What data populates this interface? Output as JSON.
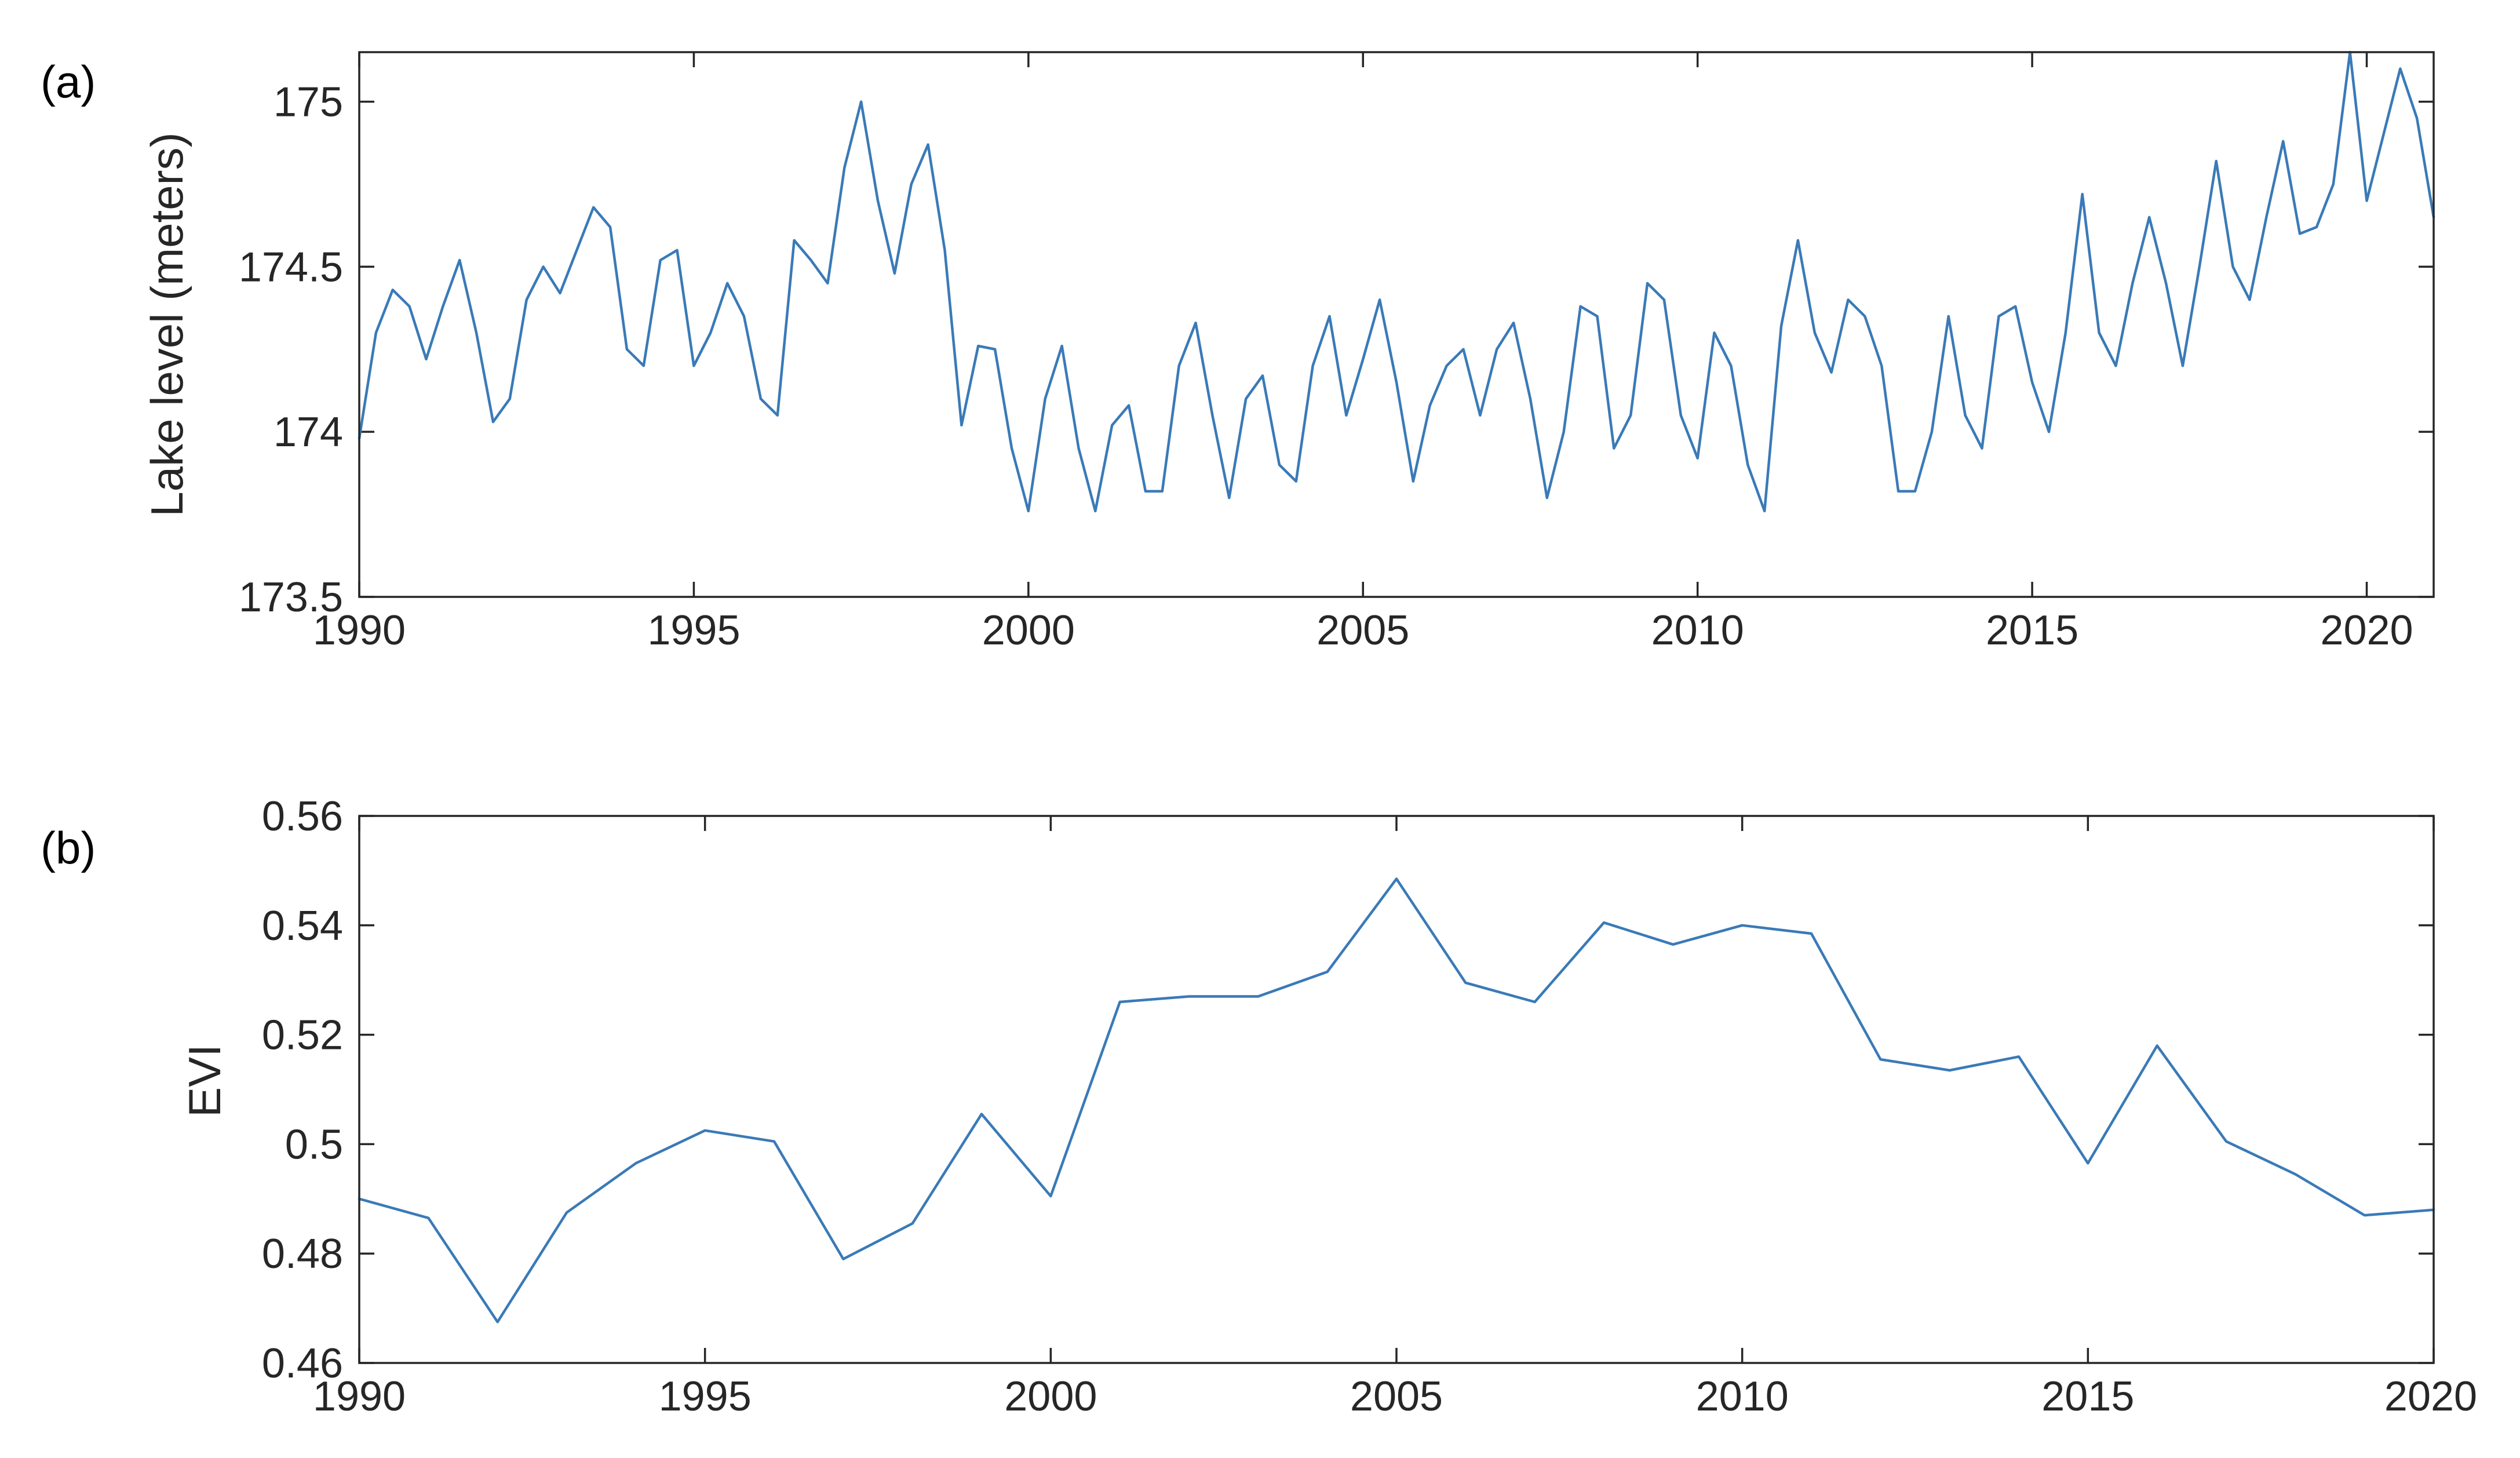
{
  "panels": [
    {
      "label": "(a)"
    },
    {
      "label": "(b)"
    }
  ],
  "colors": {
    "series": "#3a7ab7",
    "axis": "#262626"
  },
  "chart_data": [
    {
      "type": "line",
      "title": "",
      "xlabel": "",
      "ylabel": "Lake level (meters)",
      "xlim": [
        1990,
        2021
      ],
      "ylim": [
        173.5,
        175.15
      ],
      "xticks": [
        1990,
        1995,
        2000,
        2005,
        2010,
        2015,
        2020
      ],
      "xtick_labels": [
        "1990",
        "1995",
        "2000",
        "2005",
        "2010",
        "2015",
        "2020"
      ],
      "yticks": [
        173.5,
        174,
        174.5,
        175
      ],
      "ytick_labels": [
        "173.5",
        "174",
        "174.5",
        "175"
      ],
      "grid": false,
      "series": [
        {
          "x": [
            1990.0,
            1990.25,
            1990.5,
            1990.75,
            1991.0,
            1991.25,
            1991.5,
            1991.75,
            1992.0,
            1992.25,
            1992.5,
            1992.75,
            1993.0,
            1993.25,
            1993.5,
            1993.75,
            1994.0,
            1994.25,
            1994.5,
            1994.75,
            1995.0,
            1995.25,
            1995.5,
            1995.75,
            1996.0,
            1996.25,
            1996.5,
            1996.75,
            1997.0,
            1997.25,
            1997.5,
            1997.75,
            1998.0,
            1998.25,
            1998.5,
            1998.75,
            1999.0,
            1999.25,
            1999.5,
            1999.75,
            2000.0,
            2000.25,
            2000.5,
            2000.75,
            2001.0,
            2001.25,
            2001.5,
            2001.75,
            2002.0,
            2002.25,
            2002.5,
            2002.75,
            2003.0,
            2003.25,
            2003.5,
            2003.75,
            2004.0,
            2004.25,
            2004.5,
            2004.75,
            2005.0,
            2005.25,
            2005.5,
            2005.75,
            2006.0,
            2006.25,
            2006.5,
            2006.75,
            2007.0,
            2007.25,
            2007.5,
            2007.75,
            2008.0,
            2008.25,
            2008.5,
            2008.75,
            2009.0,
            2009.25,
            2009.5,
            2009.75,
            2010.0,
            2010.25,
            2010.5,
            2010.75,
            2011.0,
            2011.25,
            2011.5,
            2011.75,
            2012.0,
            2012.25,
            2012.5,
            2012.75,
            2013.0,
            2013.25,
            2013.5,
            2013.75,
            2014.0,
            2014.25,
            2014.5,
            2014.75,
            2015.0,
            2015.25,
            2015.5,
            2015.75,
            2016.0,
            2016.25,
            2016.5,
            2016.75,
            2017.0,
            2017.25,
            2017.5,
            2017.75,
            2018.0,
            2018.25,
            2018.5,
            2018.75,
            2019.0,
            2019.25,
            2019.5,
            2019.75,
            2020.0,
            2020.25,
            2020.5,
            2020.75,
            2021.0
          ],
          "values": [
            173.98,
            174.3,
            174.43,
            174.38,
            174.22,
            174.38,
            174.52,
            174.3,
            174.03,
            174.1,
            174.4,
            174.5,
            174.42,
            174.55,
            174.68,
            174.62,
            174.25,
            174.2,
            174.52,
            174.55,
            174.2,
            174.3,
            174.45,
            174.35,
            174.1,
            174.05,
            174.58,
            174.52,
            174.45,
            174.8,
            175.0,
            174.7,
            174.48,
            174.75,
            174.87,
            174.55,
            174.02,
            174.26,
            174.25,
            173.95,
            173.76,
            174.1,
            174.26,
            173.95,
            173.76,
            174.02,
            174.08,
            173.82,
            173.82,
            174.2,
            174.33,
            174.05,
            173.8,
            174.1,
            174.17,
            173.9,
            173.85,
            174.2,
            174.35,
            174.05,
            174.22,
            174.4,
            174.15,
            173.85,
            174.08,
            174.2,
            174.25,
            174.05,
            174.25,
            174.33,
            174.1,
            173.8,
            174.0,
            174.38,
            174.35,
            173.95,
            174.05,
            174.45,
            174.4,
            174.05,
            173.92,
            174.3,
            174.2,
            173.9,
            173.76,
            174.32,
            174.58,
            174.3,
            174.18,
            174.4,
            174.35,
            174.2,
            173.82,
            173.82,
            174.0,
            174.35,
            174.05,
            173.95,
            174.35,
            174.38,
            174.15,
            174.0,
            174.3,
            174.72,
            174.3,
            174.2,
            174.45,
            174.65,
            174.45,
            174.2,
            174.5,
            174.82,
            174.5,
            174.4,
            174.65,
            174.88,
            174.6,
            174.62,
            174.75,
            175.15,
            174.7,
            174.9,
            175.1,
            174.95,
            174.65
          ]
        }
      ]
    },
    {
      "type": "line",
      "title": "",
      "xlabel": "",
      "ylabel": "EVI",
      "xlim": [
        1990,
        2020
      ],
      "ylim": [
        0.46,
        0.56
      ],
      "xticks": [
        1990,
        1995,
        2000,
        2005,
        2010,
        2015,
        2020
      ],
      "xtick_labels": [
        "1990",
        "1995",
        "2000",
        "2005",
        "2010",
        "2015",
        "2020"
      ],
      "yticks": [
        0.46,
        0.48,
        0.5,
        0.52,
        0.54,
        0.56
      ],
      "ytick_labels": [
        "0.46",
        "0.48",
        "0.5",
        "0.52",
        "0.54",
        "0.56"
      ],
      "grid": false,
      "series": [
        {
          "x": [
            1990,
            1991,
            1992,
            1993,
            1994,
            1995,
            1996,
            1997,
            1998,
            1999,
            2000,
            2001,
            2002,
            2003,
            2004,
            2005,
            2006,
            2007,
            2008,
            2009,
            2010,
            2011,
            2012,
            2013,
            2014,
            2015,
            2016,
            2017,
            2018,
            2019,
            2020
          ],
          "values": [
            0.49,
            0.4865,
            0.4675,
            0.4875,
            0.4965,
            0.5025,
            0.5005,
            0.479,
            0.4855,
            0.5055,
            0.4905,
            0.526,
            0.527,
            0.527,
            0.5315,
            0.5485,
            0.5295,
            0.526,
            0.5405,
            0.5365,
            0.54,
            0.5385,
            0.5155,
            0.5135,
            0.516,
            0.4965,
            0.518,
            0.5005,
            0.4945,
            0.487,
            0.488
          ]
        }
      ]
    }
  ]
}
